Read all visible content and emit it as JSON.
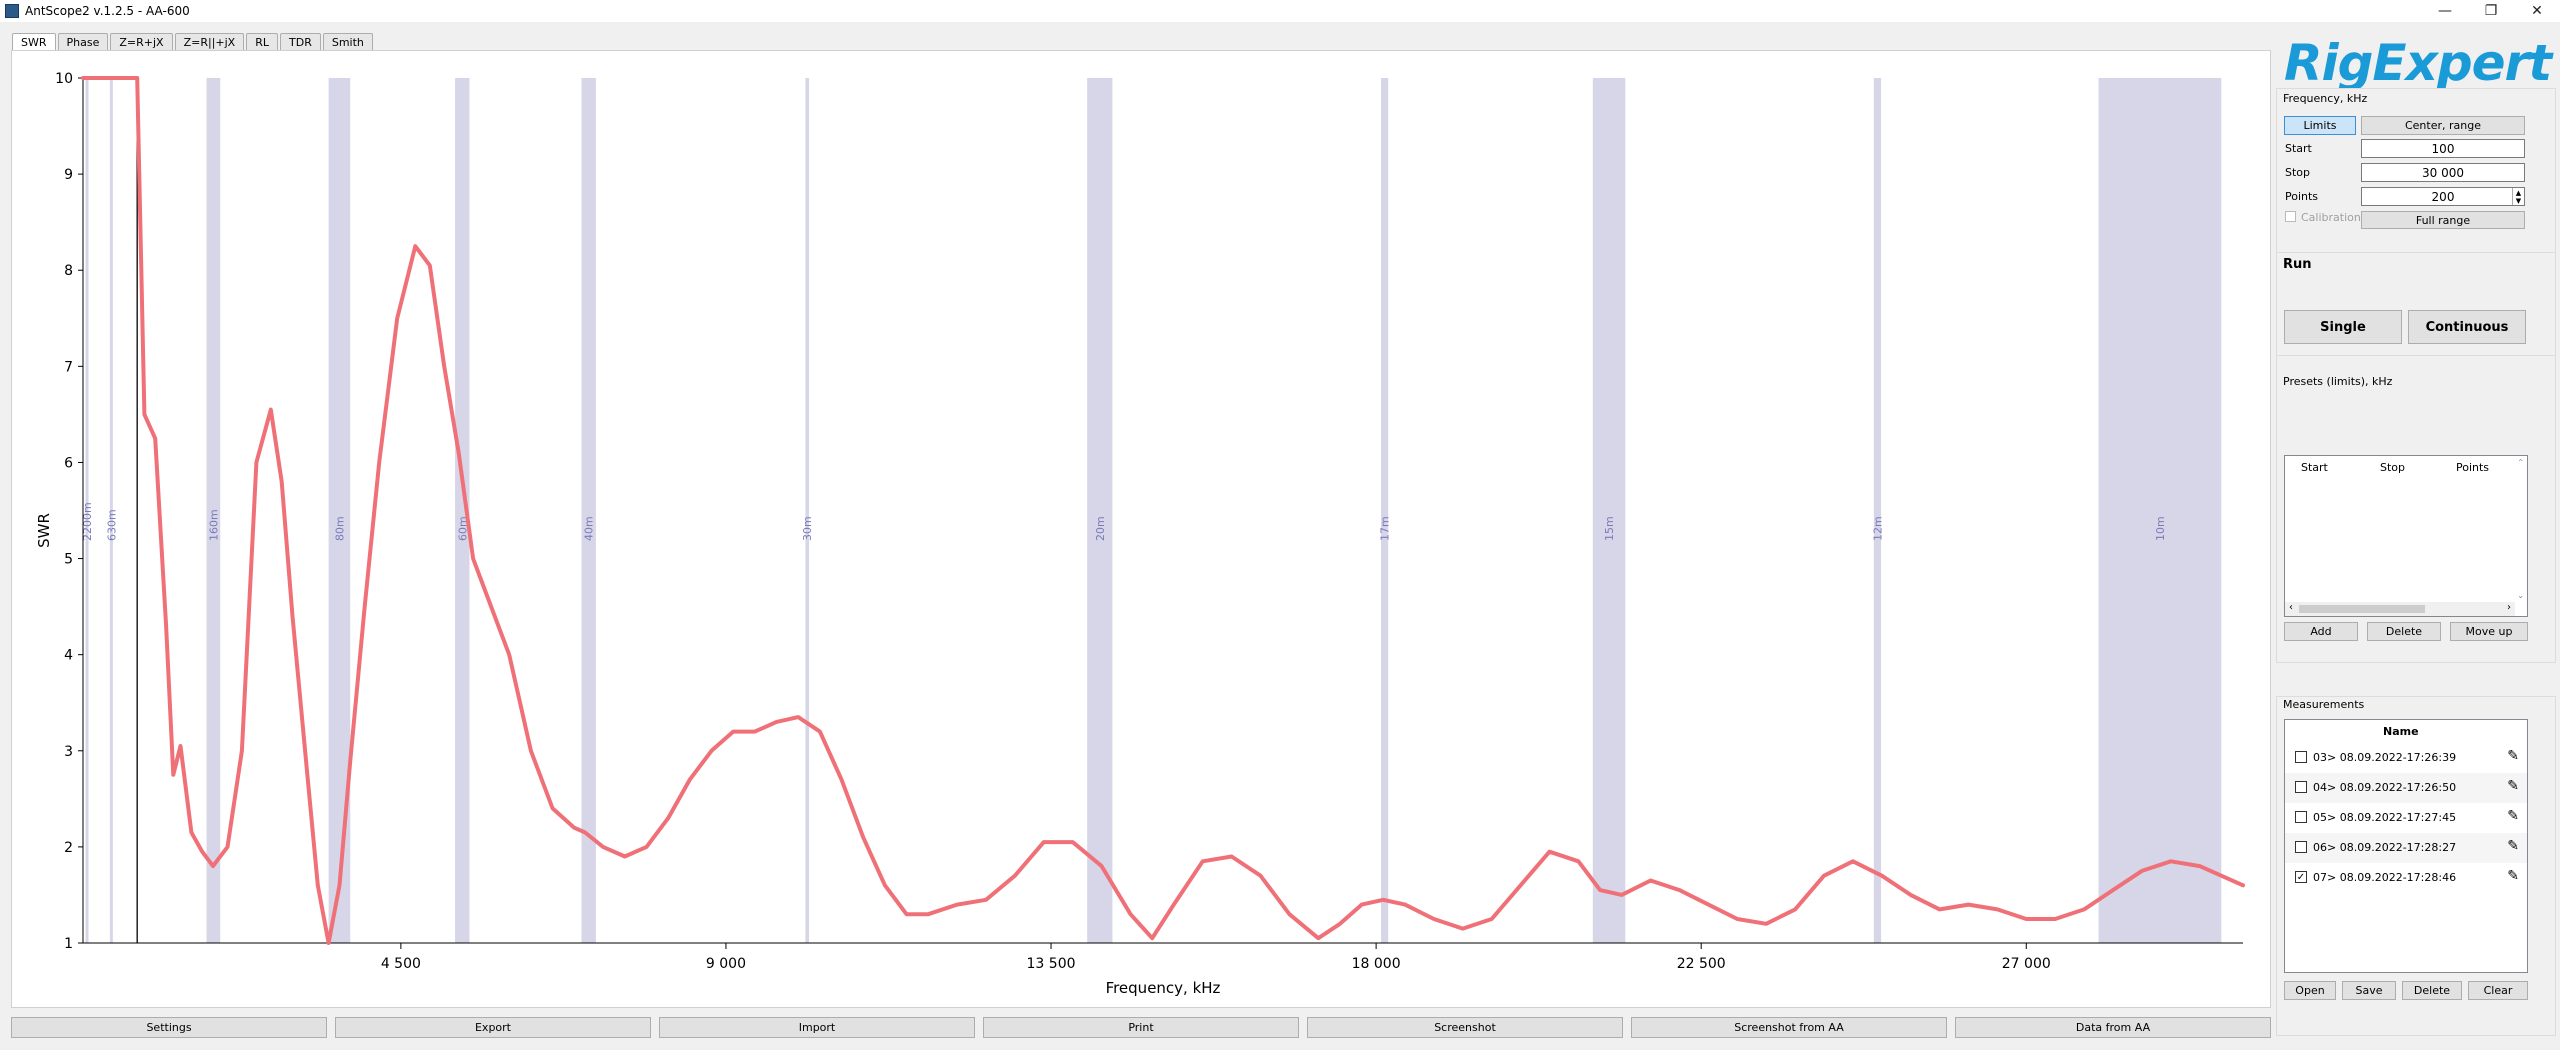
{
  "window": {
    "title": "AntScope2 v.1.2.5 - AA-600"
  },
  "tabs": [
    "SWR",
    "Phase",
    "Z=R+jX",
    "Z=R||+jX",
    "RL",
    "TDR",
    "Smith"
  ],
  "active_tab": 0,
  "chart_data": {
    "type": "line",
    "xlabel": "Frequency, kHz",
    "ylabel": "SWR",
    "xlim": [
      100,
      30000
    ],
    "ylim": [
      1,
      10
    ],
    "x_ticks": [
      {
        "value": 4500,
        "label": "4 500"
      },
      {
        "value": 9000,
        "label": "9 000"
      },
      {
        "value": 13500,
        "label": "13 500"
      },
      {
        "value": 18000,
        "label": "18 000"
      },
      {
        "value": 22500,
        "label": "22 500"
      },
      {
        "value": 27000,
        "label": "27 000"
      }
    ],
    "y_ticks": [
      1,
      2,
      3,
      4,
      5,
      6,
      7,
      8,
      9,
      10
    ],
    "bands": [
      {
        "label": "2200m",
        "start": 135,
        "end": 138
      },
      {
        "label": "630m",
        "start": 472,
        "end": 479
      },
      {
        "label": "160m",
        "start": 1810,
        "end": 2000
      },
      {
        "label": "80m",
        "start": 3500,
        "end": 3800
      },
      {
        "label": "60m",
        "start": 5250,
        "end": 5450
      },
      {
        "label": "40m",
        "start": 7000,
        "end": 7200
      },
      {
        "label": "30m",
        "start": 10100,
        "end": 10150
      },
      {
        "label": "20m",
        "start": 14000,
        "end": 14350
      },
      {
        "label": "17m",
        "start": 18068,
        "end": 18168
      },
      {
        "label": "15m",
        "start": 21000,
        "end": 21450
      },
      {
        "label": "12m",
        "start": 24890,
        "end": 24990
      },
      {
        "label": "10m",
        "start": 28000,
        "end": 29700
      }
    ],
    "marker_x": 850,
    "series": [
      {
        "color": "#f07078",
        "x": [
          100,
          850,
          950,
          1100,
          1250,
          1350,
          1450,
          1600,
          1750,
          1900,
          2100,
          2300,
          2500,
          2700,
          2850,
          3000,
          3200,
          3350,
          3500,
          3650,
          3800,
          4000,
          4200,
          4450,
          4700,
          4900,
          5100,
          5300,
          5500,
          5700,
          6000,
          6300,
          6600,
          6900,
          7050,
          7300,
          7600,
          7900,
          8200,
          8500,
          8800,
          9100,
          9400,
          9700,
          10000,
          10300,
          10600,
          10900,
          11200,
          11500,
          11800,
          12200,
          12600,
          13000,
          13400,
          13800,
          14200,
          14600,
          14900,
          15200,
          15600,
          16000,
          16400,
          16800,
          17200,
          17500,
          17800,
          18100,
          18400,
          18800,
          19200,
          19600,
          20000,
          20400,
          20800,
          21100,
          21400,
          21800,
          22200,
          22600,
          23000,
          23400,
          23800,
          24200,
          24600,
          25000,
          25400,
          25800,
          26200,
          26600,
          27000,
          27400,
          27800,
          28200,
          28600,
          29000,
          29400,
          29700,
          30000
        ],
        "y": [
          10,
          10,
          6.5,
          6.25,
          4.3,
          2.75,
          3.05,
          2.15,
          1.95,
          1.8,
          2.0,
          3.0,
          6.0,
          6.55,
          5.8,
          4.4,
          2.8,
          1.6,
          1.0,
          1.6,
          2.9,
          4.5,
          6.0,
          7.5,
          8.25,
          8.05,
          7.0,
          6.1,
          5.0,
          4.6,
          4.0,
          3.0,
          2.4,
          2.2,
          2.15,
          2.0,
          1.9,
          2.0,
          2.3,
          2.7,
          3.0,
          3.2,
          3.2,
          3.3,
          3.35,
          3.2,
          2.7,
          2.1,
          1.6,
          1.3,
          1.3,
          1.4,
          1.45,
          1.7,
          2.05,
          2.05,
          1.8,
          1.3,
          1.05,
          1.4,
          1.85,
          1.9,
          1.7,
          1.3,
          1.05,
          1.2,
          1.4,
          1.45,
          1.4,
          1.25,
          1.15,
          1.25,
          1.6,
          1.95,
          1.85,
          1.55,
          1.5,
          1.65,
          1.55,
          1.4,
          1.25,
          1.2,
          1.35,
          1.7,
          1.85,
          1.7,
          1.5,
          1.35,
          1.4,
          1.35,
          1.25,
          1.25,
          1.35,
          1.55,
          1.75,
          1.85,
          1.8,
          1.7,
          1.6
        ]
      }
    ]
  },
  "logo": {
    "text": "RigExpert"
  },
  "frequency": {
    "title": "Frequency, kHz",
    "mode_limits": "Limits",
    "mode_center": "Center, range",
    "start_label": "Start",
    "start_value": "100",
    "stop_label": "Stop",
    "stop_value": "30 000",
    "points_label": "Points",
    "points_value": "200",
    "calibration_label": "Calibration",
    "full_range": "Full range"
  },
  "run": {
    "title": "Run",
    "single": "Single",
    "continuous": "Continuous"
  },
  "presets": {
    "title": "Presets (limits), kHz",
    "columns": [
      "Start",
      "Stop",
      "Points"
    ],
    "add": "Add",
    "delete": "Delete",
    "move_up": "Move up"
  },
  "measurements": {
    "title": "Measurements",
    "column": "Name",
    "rows": [
      {
        "name": "03> 08.09.2022-17:26:39",
        "checked": false
      },
      {
        "name": "04> 08.09.2022-17:26:50",
        "checked": false
      },
      {
        "name": "05> 08.09.2022-17:27:45",
        "checked": false
      },
      {
        "name": "06> 08.09.2022-17:28:27",
        "checked": false
      },
      {
        "name": "07> 08.09.2022-17:28:46",
        "checked": true
      }
    ],
    "open": "Open",
    "save": "Save",
    "delete": "Delete",
    "clear": "Clear"
  },
  "bottom": {
    "settings": "Settings",
    "export": "Export",
    "import": "Import",
    "print": "Print",
    "screenshot": "Screenshot",
    "screenshot_aa": "Screenshot from AA",
    "data_aa": "Data from AA"
  },
  "icons": {
    "minimize": "minimize-icon",
    "maximize": "maximize-icon",
    "close": "close-icon",
    "edit": "pencil-icon"
  }
}
